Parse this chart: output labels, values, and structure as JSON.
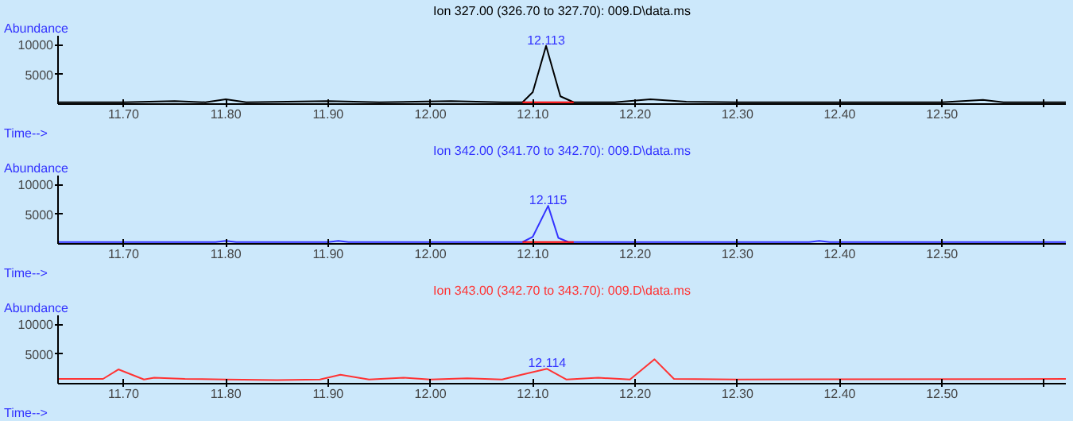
{
  "chart_data": [
    {
      "type": "line",
      "title": "Ion 327.00 (326.70 to 327.70): 009.D\\data.ms",
      "xlabel": "Time-->",
      "ylabel": "Abundance",
      "xlim": [
        11.636,
        12.621
      ],
      "ylim": [
        0,
        11500
      ],
      "xticks": [
        {
          "value": 11.7,
          "label": "11.70"
        },
        {
          "value": 11.8,
          "label": "11.80"
        },
        {
          "value": 11.9,
          "label": "11.90"
        },
        {
          "value": 12.0,
          "label": "12.00"
        },
        {
          "value": 12.1,
          "label": "12.10"
        },
        {
          "value": 12.2,
          "label": "12.20"
        },
        {
          "value": 12.3,
          "label": "12.30"
        },
        {
          "value": 12.4,
          "label": "12.40"
        },
        {
          "value": 12.5,
          "label": "12.50"
        },
        {
          "value": 12.6,
          "label": null
        }
      ],
      "yticks": [
        5000,
        10000
      ],
      "grid": false,
      "series": [
        {
          "color": "#000000",
          "x": [
            11.636,
            11.7,
            11.75,
            11.78,
            11.8,
            11.82,
            11.9,
            11.95,
            12.02,
            12.07,
            12.09,
            12.1,
            12.113,
            12.127,
            12.14,
            12.18,
            12.215,
            12.25,
            12.3,
            12.5,
            12.54,
            12.56,
            12.621
          ],
          "values": [
            300,
            300,
            500,
            300,
            800,
            300,
            500,
            300,
            500,
            300,
            300,
            2000,
            9800,
            1300,
            300,
            300,
            800,
            400,
            300,
            300,
            700,
            300,
            300
          ]
        },
        {
          "color": "#ff0000",
          "x": [
            12.09,
            12.14
          ],
          "values": [
            300,
            300
          ]
        }
      ],
      "annotations": [
        {
          "text": "12.113",
          "x": 12.113,
          "y": 9800
        }
      ]
    },
    {
      "type": "line",
      "title": "Ion 342.00 (341.70 to 342.70): 009.D\\data.ms",
      "xlabel": "Time-->",
      "ylabel": "Abundance",
      "xlim": [
        11.636,
        12.621
      ],
      "ylim": [
        0,
        11500
      ],
      "xticks": [
        {
          "value": 11.7,
          "label": "11.70"
        },
        {
          "value": 11.8,
          "label": "11.80"
        },
        {
          "value": 11.9,
          "label": "11.90"
        },
        {
          "value": 12.0,
          "label": "12.00"
        },
        {
          "value": 12.1,
          "label": "12.10"
        },
        {
          "value": 12.2,
          "label": "12.20"
        },
        {
          "value": 12.3,
          "label": "12.30"
        },
        {
          "value": 12.4,
          "label": "12.40"
        },
        {
          "value": 12.5,
          "label": "12.50"
        },
        {
          "value": 12.6,
          "label": null
        }
      ],
      "yticks": [
        5000,
        10000
      ],
      "grid": false,
      "series": [
        {
          "color": "#3333ff",
          "x": [
            11.636,
            11.79,
            11.8,
            11.81,
            11.9,
            11.91,
            11.92,
            12.09,
            12.1,
            12.115,
            12.125,
            12.135,
            12.37,
            12.38,
            12.39,
            12.621
          ],
          "values": [
            300,
            300,
            500,
            300,
            300,
            500,
            300,
            300,
            1200,
            6400,
            1000,
            300,
            300,
            500,
            300,
            300
          ]
        },
        {
          "color": "#ff0000",
          "x": [
            12.09,
            12.14
          ],
          "values": [
            300,
            300
          ]
        }
      ],
      "annotations": [
        {
          "text": "12.115",
          "x": 12.115,
          "y": 6400
        }
      ]
    },
    {
      "type": "line",
      "title": "Ion 343.00 (342.70 to 343.70): 009.D\\data.ms",
      "xlabel": "Time-->",
      "ylabel": "Abundance",
      "xlim": [
        11.636,
        12.621
      ],
      "ylim": [
        0,
        11500
      ],
      "xticks": [
        {
          "value": 11.7,
          "label": "11.70"
        },
        {
          "value": 11.8,
          "label": "11.80"
        },
        {
          "value": 11.9,
          "label": "11.90"
        },
        {
          "value": 12.0,
          "label": "12.00"
        },
        {
          "value": 12.1,
          "label": "12.10"
        },
        {
          "value": 12.2,
          "label": "12.20"
        },
        {
          "value": 12.3,
          "label": "12.30"
        },
        {
          "value": 12.4,
          "label": "12.40"
        },
        {
          "value": 12.5,
          "label": "12.50"
        },
        {
          "value": 12.6,
          "label": null
        }
      ],
      "yticks": [
        5000,
        10000
      ],
      "grid": false,
      "series": [
        {
          "color": "#ff3333",
          "x": [
            11.636,
            11.68,
            11.695,
            11.72,
            11.73,
            11.76,
            11.8,
            11.85,
            11.892,
            11.912,
            11.94,
            11.974,
            12.0,
            12.036,
            12.07,
            12.089,
            12.114,
            12.133,
            12.164,
            12.195,
            12.219,
            12.238,
            12.3,
            12.621
          ],
          "values": [
            800,
            800,
            2400,
            700,
            1000,
            800,
            700,
            600,
            700,
            1500,
            700,
            1000,
            700,
            900,
            700,
            1500,
            2500,
            700,
            1000,
            700,
            4100,
            800,
            700,
            800
          ]
        }
      ],
      "annotations": [
        {
          "text": "12.114",
          "x": 12.114,
          "y": 2500
        }
      ]
    }
  ]
}
